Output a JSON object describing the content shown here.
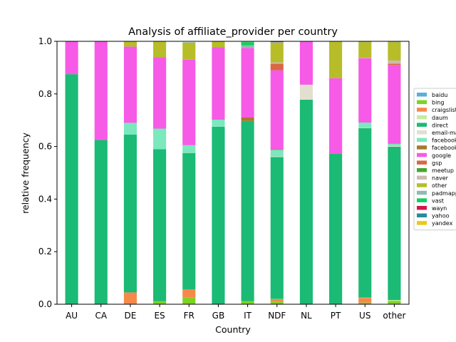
{
  "chart_data": {
    "type": "bar",
    "stacked": true,
    "title": "Analysis of affiliate_provider per country",
    "xlabel": "Country",
    "ylabel": "relative frequency",
    "ylim": [
      0,
      1.0
    ],
    "yticks": [
      "0.0",
      "0.2",
      "0.4",
      "0.6",
      "0.8",
      "1.0"
    ],
    "grid": false,
    "legend_position": "right",
    "categories": [
      "AU",
      "CA",
      "DE",
      "ES",
      "FR",
      "GB",
      "IT",
      "NDF",
      "NL",
      "PT",
      "US",
      "other"
    ],
    "series": [
      {
        "name": "baidu",
        "color": "#5aaed8",
        "values": [
          0,
          0,
          0,
          0,
          0,
          0,
          0,
          0.001,
          0,
          0,
          0.001,
          0.001
        ]
      },
      {
        "name": "bing",
        "color": "#7ed321",
        "values": [
          0,
          0,
          0,
          0.012,
          0.025,
          0,
          0.012,
          0.008,
          0,
          0,
          0.005,
          0.012
        ]
      },
      {
        "name": "craigslist",
        "color": "#f5894a",
        "values": [
          0,
          0,
          0.045,
          0,
          0.032,
          0,
          0,
          0.01,
          0,
          0,
          0.018,
          0
        ]
      },
      {
        "name": "daum",
        "color": "#c5eba1",
        "values": [
          0,
          0,
          0,
          0,
          0,
          0,
          0,
          0.001,
          0,
          0,
          0.001,
          0.003
        ]
      },
      {
        "name": "direct",
        "color": "#1bba75",
        "values": [
          0.875,
          0.625,
          0.6,
          0.578,
          0.518,
          0.675,
          0.685,
          0.54,
          0.778,
          0.572,
          0.645,
          0.583
        ]
      },
      {
        "name": "email-marketing",
        "color": "#e2dfce",
        "values": [
          0,
          0,
          0,
          0,
          0,
          0,
          0,
          0.002,
          0.057,
          0,
          0.001,
          0.003
        ]
      },
      {
        "name": "facebook",
        "color": "#7be8bd",
        "values": [
          0,
          0,
          0.045,
          0.078,
          0.03,
          0.027,
          0,
          0.025,
          0,
          0,
          0.02,
          0.008
        ]
      },
      {
        "name": "facebook-open-graph",
        "color": "#a8792d",
        "values": [
          0,
          0,
          0,
          0,
          0,
          0,
          0.013,
          0.003,
          0,
          0,
          0,
          0
        ]
      },
      {
        "name": "google",
        "color": "#f65ae6",
        "values": [
          0.125,
          0.375,
          0.29,
          0.272,
          0.325,
          0.275,
          0.265,
          0.3,
          0.165,
          0.288,
          0.245,
          0.3
        ]
      },
      {
        "name": "gsp",
        "color": "#d96843",
        "values": [
          0,
          0,
          0,
          0,
          0,
          0,
          0,
          0.025,
          0,
          0,
          0,
          0.005
        ]
      },
      {
        "name": "meetup",
        "color": "#48a432",
        "values": [
          0,
          0,
          0,
          0,
          0,
          0,
          0,
          0,
          0,
          0,
          0,
          0
        ]
      },
      {
        "name": "naver",
        "color": "#cdbbb2",
        "values": [
          0,
          0,
          0,
          0,
          0,
          0,
          0,
          0.005,
          0,
          0,
          0.001,
          0.012
        ]
      },
      {
        "name": "other",
        "color": "#b7bd28",
        "values": [
          0,
          0,
          0.02,
          0.06,
          0.065,
          0.023,
          0,
          0.075,
          0,
          0.14,
          0.06,
          0.07
        ]
      },
      {
        "name": "padmapper",
        "color": "#8fbcb0",
        "values": [
          0,
          0,
          0,
          0,
          0.002,
          0,
          0.01,
          0.002,
          0,
          0,
          0.001,
          0
        ]
      },
      {
        "name": "vast",
        "color": "#0fd063",
        "values": [
          0,
          0,
          0,
          0,
          0,
          0,
          0.012,
          0,
          0,
          0,
          0,
          0
        ]
      },
      {
        "name": "wayn",
        "color": "#d6154a",
        "values": [
          0,
          0,
          0,
          0,
          0,
          0,
          0,
          0.002,
          0,
          0,
          0,
          0
        ]
      },
      {
        "name": "yahoo",
        "color": "#268c9c",
        "values": [
          0,
          0,
          0,
          0,
          0,
          0.001,
          0,
          0.002,
          0,
          0,
          0.002,
          0.001
        ]
      },
      {
        "name": "yandex",
        "color": "#eec71c",
        "values": [
          0,
          0,
          0,
          0,
          0,
          0,
          0.003,
          0,
          0,
          0,
          0,
          0
        ]
      }
    ]
  }
}
